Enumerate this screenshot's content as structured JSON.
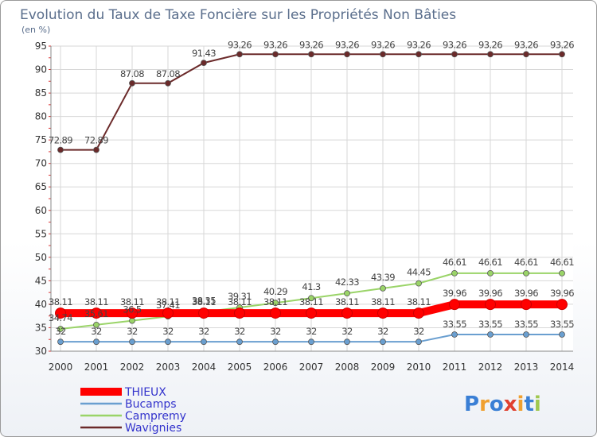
{
  "chart_data": {
    "type": "line",
    "title": "Evolution du Taux de Taxe Foncière sur les Propriétés Non Bâties",
    "ylabel": "(en %)",
    "xlabel": "",
    "ylim": [
      30,
      95
    ],
    "yticks": [
      30,
      35,
      40,
      45,
      50,
      55,
      60,
      65,
      70,
      75,
      80,
      85,
      90,
      95
    ],
    "grid": true,
    "legend_position": "bottom-left",
    "x": [
      "2000",
      "2001",
      "2002",
      "2003",
      "2004",
      "2005",
      "2006",
      "2007",
      "2008",
      "2009",
      "2010",
      "2011",
      "2012",
      "2013",
      "2014"
    ],
    "series": [
      {
        "name": "Wavignies",
        "color": "#6b2a2a",
        "values": [
          72.89,
          72.89,
          87.08,
          87.08,
          91.43,
          93.26,
          93.26,
          93.26,
          93.26,
          93.26,
          93.26,
          93.26,
          93.26,
          93.26,
          93.26
        ],
        "labels": [
          "72.89",
          "72.89",
          "87.08",
          "87.08",
          "91.43",
          "93.26",
          "93.26",
          "93.26",
          "93.26",
          "93.26",
          "93.26",
          "93.26",
          "93.26",
          "93.26",
          "93.26"
        ]
      },
      {
        "name": "Campremy",
        "color": "#9ad468",
        "values": [
          34.74,
          35.61,
          36.5,
          37.41,
          38.35,
          39.31,
          40.29,
          41.3,
          42.33,
          43.39,
          44.45,
          46.61,
          46.61,
          46.61,
          46.61
        ],
        "labels": [
          "34.74",
          "35.61",
          "36.5",
          "37.41",
          "38.35",
          "39.31",
          "40.29",
          "41.3",
          "42.33",
          "43.39",
          "44.45",
          "46.61",
          "46.61",
          "46.61",
          "46.61"
        ]
      },
      {
        "name": "THIEUX",
        "color": "#ff0000",
        "values": [
          38.11,
          38.11,
          38.11,
          38.11,
          38.11,
          38.11,
          38.11,
          38.11,
          38.11,
          38.11,
          38.11,
          39.96,
          39.96,
          39.96,
          39.96
        ],
        "labels": [
          "38.11",
          "38.11",
          "38.11",
          "38.11",
          "38.11",
          "38.11",
          "38.11",
          "38.11",
          "38.11",
          "38.11",
          "38.11",
          "39.96",
          "39.96",
          "39.96",
          "39.96"
        ]
      },
      {
        "name": "Bucamps",
        "color": "#6a9fd0",
        "values": [
          32,
          32,
          32,
          32,
          32,
          32,
          32,
          32,
          32,
          32,
          32,
          33.55,
          33.55,
          33.55,
          33.55
        ],
        "labels": [
          "32",
          "32",
          "32",
          "32",
          "32",
          "32",
          "32",
          "32",
          "32",
          "32",
          "32",
          "33.55",
          "33.55",
          "33.55",
          "33.55"
        ]
      }
    ],
    "legend": [
      {
        "name": "THIEUX",
        "color": "#ff0000",
        "text_color": "#3333cc"
      },
      {
        "name": "Bucamps",
        "color": "#6a9fd0",
        "text_color": "#3333cc"
      },
      {
        "name": "Campremy",
        "color": "#9ad468",
        "text_color": "#3333cc"
      },
      {
        "name": "Wavignies",
        "color": "#6b2a2a",
        "text_color": "#3333cc"
      }
    ]
  },
  "logo": {
    "letters": [
      "P",
      "r",
      "o",
      "x",
      "i",
      "t",
      "i"
    ],
    "colors": [
      "#3a7fd5",
      "#f0a030",
      "#3a7fd5",
      "#e04030",
      "#f0a030",
      "#3a7fd5",
      "#a0c850"
    ]
  }
}
